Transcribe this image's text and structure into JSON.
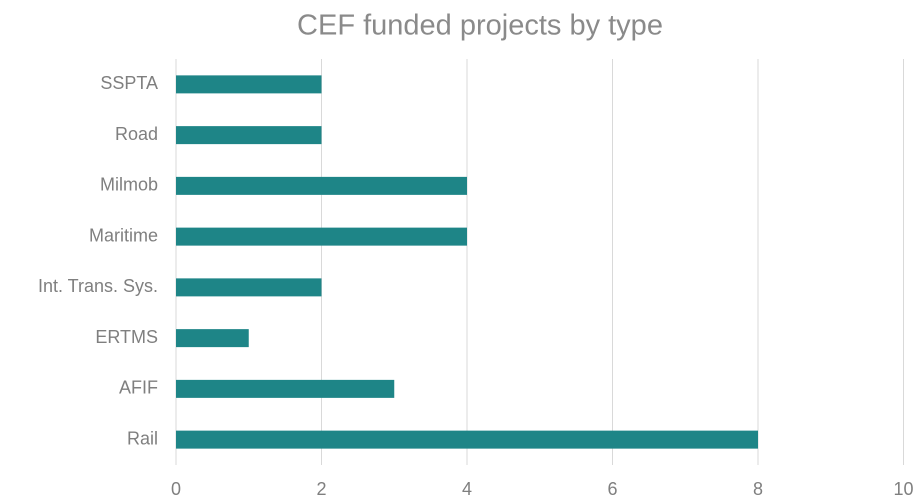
{
  "chart_data": {
    "type": "bar",
    "orientation": "horizontal",
    "title": "CEF funded projects by type",
    "categories": [
      "SSPTA",
      "Road",
      "Milmob",
      "Maritime",
      "Int. Trans. Sys.",
      "ERTMS",
      "AFIF",
      "Rail"
    ],
    "values": [
      2,
      2,
      4,
      4,
      2,
      1,
      3,
      8
    ],
    "color": "#1e8587",
    "xlim": [
      0,
      10
    ],
    "xticks": [
      0,
      2,
      4,
      6,
      8,
      10
    ],
    "grid": true
  }
}
